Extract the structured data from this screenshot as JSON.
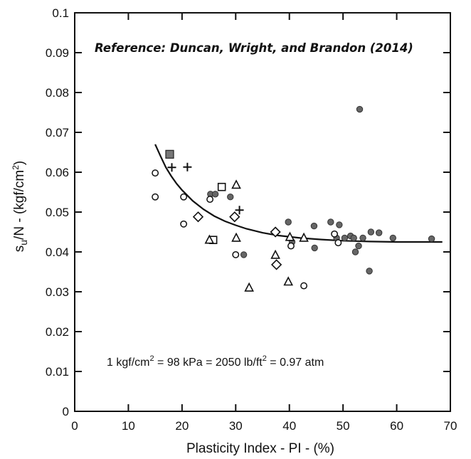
{
  "chart_data": {
    "type": "scatter",
    "title": "",
    "xlabel": "Plasticity Index - PI - (%)",
    "ylabel": "su/N  - (kgf/cm2)",
    "xlim": [
      0,
      70
    ],
    "ylim": [
      0,
      0.1
    ],
    "x_ticks": [
      "0",
      "10",
      "20",
      "30",
      "40",
      "50",
      "60",
      "70"
    ],
    "y_ticks": [
      "0",
      "0.01",
      "0.02",
      "0.03",
      "0.04",
      "0.05",
      "0.06",
      "0.07",
      "0.08",
      "0.09",
      "0.1"
    ],
    "grid": false,
    "legend": "none",
    "annotations": {
      "reference": "Reference:  Duncan, Wright, and Brandon (2014)",
      "conversion": "1 kgf/cm² = 98 kPa = 2050 lb/ft² = 0.97 atm"
    },
    "series": [
      {
        "marker": "filled-circle",
        "points": [
          [
            25.3,
            0.0545
          ],
          [
            26.2,
            0.0545
          ],
          [
            29,
            0.0538
          ],
          [
            31.5,
            0.0393
          ],
          [
            39.8,
            0.0475
          ],
          [
            40.5,
            0.0425
          ],
          [
            44.6,
            0.0465
          ],
          [
            44.7,
            0.041
          ],
          [
            47.7,
            0.0475
          ],
          [
            49.3,
            0.0468
          ],
          [
            48.8,
            0.0435
          ],
          [
            50.3,
            0.0435
          ],
          [
            51.4,
            0.044
          ],
          [
            52,
            0.0435
          ],
          [
            52.3,
            0.04
          ],
          [
            52.9,
            0.0415
          ],
          [
            53.1,
            0.0758
          ],
          [
            53.7,
            0.0435
          ],
          [
            54.9,
            0.0352
          ],
          [
            55.2,
            0.045
          ],
          [
            56.7,
            0.0448
          ],
          [
            59.3,
            0.0435
          ],
          [
            66.5,
            0.0433
          ]
        ]
      },
      {
        "marker": "open-circle",
        "points": [
          [
            15,
            0.0598
          ],
          [
            15,
            0.0538
          ],
          [
            20.3,
            0.0538
          ],
          [
            20.3,
            0.047
          ],
          [
            25.2,
            0.0532
          ],
          [
            30,
            0.0393
          ],
          [
            40.3,
            0.0415
          ],
          [
            42.7,
            0.0315
          ],
          [
            48.4,
            0.0445
          ],
          [
            49.1,
            0.0423
          ]
        ]
      },
      {
        "marker": "open-square",
        "points": [
          [
            25.8,
            0.043
          ],
          [
            27.4,
            0.0563
          ]
        ]
      },
      {
        "marker": "filled-square",
        "points": [
          [
            17.7,
            0.0645
          ]
        ]
      },
      {
        "marker": "plus",
        "points": [
          [
            18.1,
            0.0612
          ],
          [
            21,
            0.0613
          ],
          [
            30.7,
            0.0505
          ]
        ]
      },
      {
        "marker": "open-triangle",
        "points": [
          [
            25.1,
            0.043
          ],
          [
            30.1,
            0.0568
          ],
          [
            30.1,
            0.0435
          ],
          [
            32.5,
            0.031
          ],
          [
            37.4,
            0.0392
          ],
          [
            39.8,
            0.0325
          ],
          [
            40.1,
            0.0437
          ],
          [
            42.7,
            0.0435
          ]
        ]
      },
      {
        "marker": "open-diamond",
        "points": [
          [
            23,
            0.0488
          ],
          [
            29.8,
            0.0488
          ],
          [
            37.4,
            0.045
          ],
          [
            37.6,
            0.0368
          ]
        ]
      }
    ],
    "fit_curve": {
      "style": "solid-line",
      "points": [
        [
          15,
          0.067
        ],
        [
          16,
          0.064
        ],
        [
          17,
          0.0612
        ],
        [
          18,
          0.059
        ],
        [
          19,
          0.0571
        ],
        [
          20,
          0.0555
        ],
        [
          22,
          0.0528
        ],
        [
          24,
          0.0507
        ],
        [
          26,
          0.049
        ],
        [
          28,
          0.0477
        ],
        [
          30,
          0.0467
        ],
        [
          32,
          0.0458
        ],
        [
          35,
          0.0448
        ],
        [
          38,
          0.0441
        ],
        [
          42,
          0.0435
        ],
        [
          46,
          0.0431
        ],
        [
          50,
          0.0428
        ],
        [
          55,
          0.0426
        ],
        [
          60,
          0.0425
        ],
        [
          65,
          0.0425
        ],
        [
          68.5,
          0.0425
        ]
      ]
    }
  }
}
